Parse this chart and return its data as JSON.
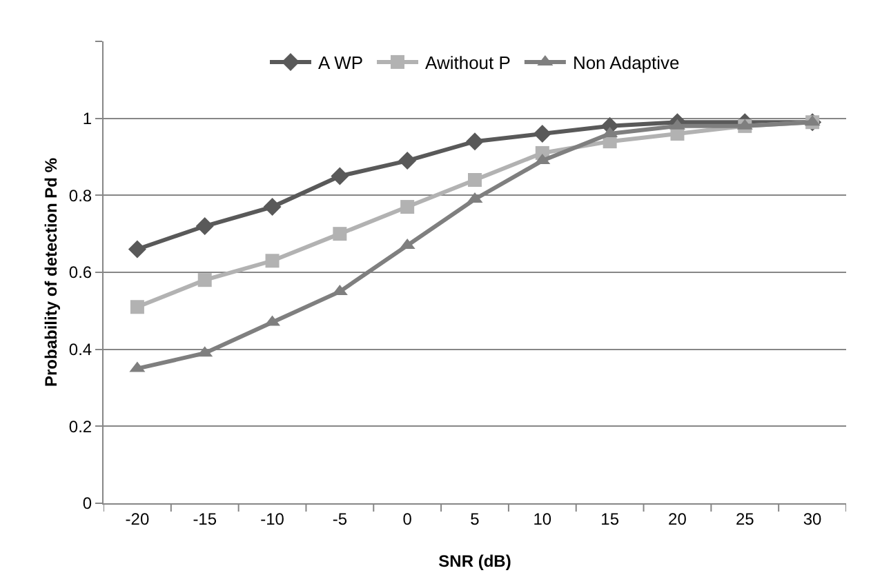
{
  "chart_data": {
    "type": "line",
    "xlabel": "SNR (dB)",
    "ylabel": "Probability of detection Pd %",
    "categories": [
      "-20",
      "-15",
      "-10",
      "-5",
      "0",
      "5",
      "10",
      "15",
      "20",
      "25",
      "30"
    ],
    "series": [
      {
        "name": "A WP",
        "color": "#595959",
        "marker": "diamond",
        "values": [
          0.66,
          0.72,
          0.77,
          0.85,
          0.89,
          0.94,
          0.96,
          0.98,
          0.99,
          0.99,
          0.99
        ]
      },
      {
        "name": "Awithout P",
        "color": "#b2b2b2",
        "marker": "square",
        "values": [
          0.51,
          0.58,
          0.63,
          0.7,
          0.77,
          0.84,
          0.91,
          0.94,
          0.96,
          0.98,
          0.99
        ]
      },
      {
        "name": "Non Adaptive",
        "color": "#7f7f7f",
        "marker": "triangle",
        "values": [
          0.35,
          0.39,
          0.47,
          0.55,
          0.67,
          0.79,
          0.89,
          0.96,
          0.98,
          0.98,
          0.99
        ]
      }
    ],
    "ylim": [
      0,
      1.2
    ],
    "yticks": [
      0,
      0.2,
      0.4,
      0.6,
      0.8,
      1,
      {
        "value": 1.2,
        "label": null
      }
    ],
    "grid": "y",
    "legend": "top",
    "line_style": "solid"
  }
}
